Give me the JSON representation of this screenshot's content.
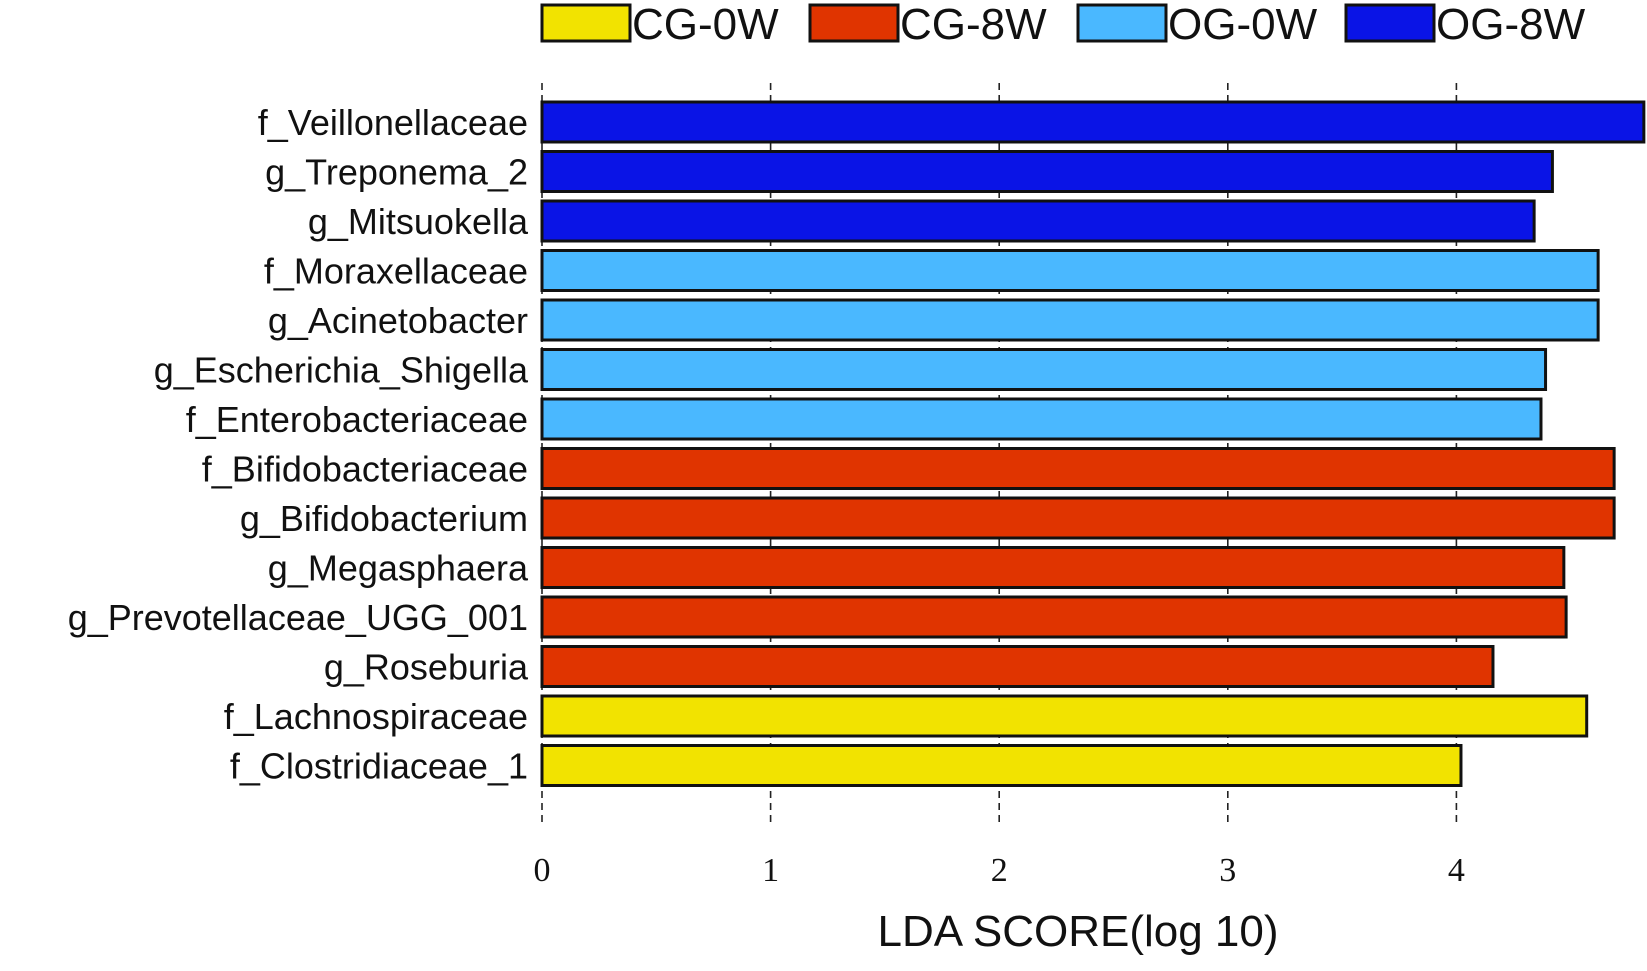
{
  "chart_data": {
    "type": "bar",
    "orientation": "horizontal",
    "xlabel": "LDA SCORE(log 10)",
    "xlim": [
      0,
      4.82
    ],
    "xticks": [
      0,
      1,
      2,
      3,
      4
    ],
    "grid": "vertical-dashed",
    "legend_position": "top",
    "legend": [
      {
        "name": "CG-0W",
        "color": "#f2e300"
      },
      {
        "name": "CG-8W",
        "color": "#e03400"
      },
      {
        "name": "OG-0W",
        "color": "#4ab8ff"
      },
      {
        "name": "OG-8W",
        "color": "#0a14e6"
      }
    ],
    "bars": [
      {
        "label": "f_Veillonellaceae",
        "value": 4.82,
        "group": "OG-8W"
      },
      {
        "label": "g_Treponema_2",
        "value": 4.42,
        "group": "OG-8W"
      },
      {
        "label": "g_Mitsuokella",
        "value": 4.34,
        "group": "OG-8W"
      },
      {
        "label": "f_Moraxellaceae",
        "value": 4.62,
        "group": "OG-0W"
      },
      {
        "label": "g_Acinetobacter",
        "value": 4.62,
        "group": "OG-0W"
      },
      {
        "label": "g_Escherichia_Shigella",
        "value": 4.39,
        "group": "OG-0W"
      },
      {
        "label": "f_Enterobacteriaceae",
        "value": 4.37,
        "group": "OG-0W"
      },
      {
        "label": "f_Bifidobacteriaceae",
        "value": 4.69,
        "group": "CG-8W"
      },
      {
        "label": "g_Bifidobacterium",
        "value": 4.69,
        "group": "CG-8W"
      },
      {
        "label": "g_Megasphaera",
        "value": 4.47,
        "group": "CG-8W"
      },
      {
        "label": "g_Prevotellaceae_UGG_001",
        "value": 4.48,
        "group": "CG-8W"
      },
      {
        "label": "g_Roseburia",
        "value": 4.16,
        "group": "CG-8W"
      },
      {
        "label": "f_Lachnospiraceae",
        "value": 4.57,
        "group": "CG-0W"
      },
      {
        "label": "f_Clostridiaceae_1",
        "value": 4.02,
        "group": "CG-0W"
      }
    ]
  }
}
